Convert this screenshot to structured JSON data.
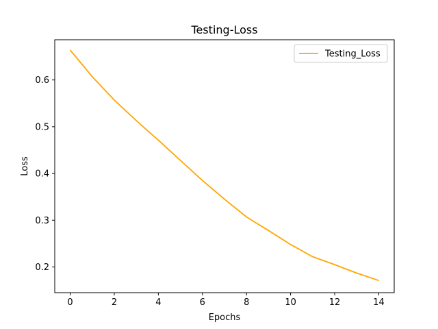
{
  "chart_data": {
    "type": "line",
    "title": "Testing-Loss",
    "xlabel": "Epochs",
    "ylabel": "Loss",
    "xlim": [
      -0.7,
      14.7
    ],
    "ylim": [
      0.145,
      0.686
    ],
    "xticks": [
      0,
      2,
      4,
      6,
      8,
      10,
      12,
      14
    ],
    "yticks": [
      0.2,
      0.3,
      0.4,
      0.5,
      0.6
    ],
    "grid": false,
    "legend_position": "top-right",
    "series": [
      {
        "name": "Testing_Loss",
        "color": "#ffa500",
        "x": [
          0,
          1,
          2,
          3,
          4,
          5,
          6,
          7,
          8,
          9,
          10,
          11,
          12,
          13,
          14
        ],
        "y": [
          0.664,
          0.607,
          0.557,
          0.513,
          0.471,
          0.428,
          0.385,
          0.345,
          0.307,
          0.278,
          0.248,
          0.222,
          0.205,
          0.187,
          0.171
        ]
      }
    ]
  }
}
